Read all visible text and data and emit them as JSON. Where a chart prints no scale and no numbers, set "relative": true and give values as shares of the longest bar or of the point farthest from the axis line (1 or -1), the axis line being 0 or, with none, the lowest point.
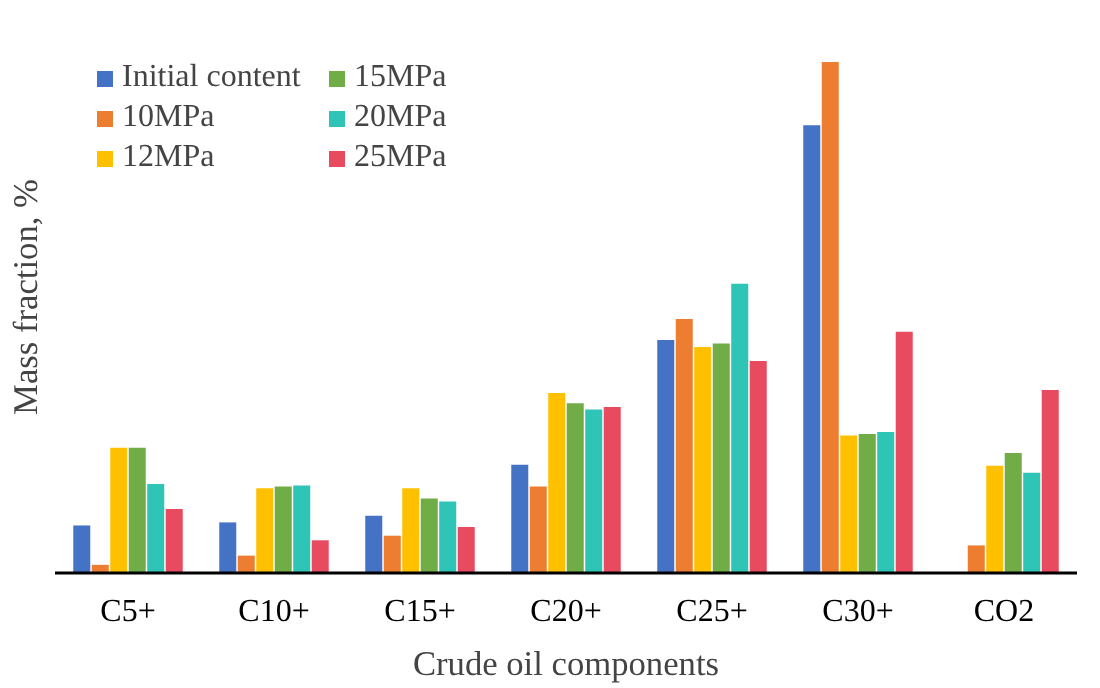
{
  "chart_data": {
    "type": "bar",
    "relative": true,
    "xlabel": "Crude oil components",
    "ylabel": "Mass fraction, %",
    "categories": [
      "C5+",
      "C10+",
      "C15+",
      "C20+",
      "C25+",
      "C30+",
      "CO2"
    ],
    "legend": "top left",
    "grid": false,
    "series": [
      {
        "name": "Initial content",
        "color": "#4472c4",
        "values": [
          0.093,
          0.099,
          0.112,
          0.212,
          0.456,
          0.876,
          null
        ]
      },
      {
        "name": "10MPa",
        "color": "#ed7d31",
        "values": [
          0.016,
          0.034,
          0.073,
          0.169,
          0.497,
          1,
          0.054
        ]
      },
      {
        "name": "12MPa",
        "color": "#ffc000",
        "values": [
          0.245,
          0.166,
          0.166,
          0.352,
          0.442,
          0.269,
          0.21
        ]
      },
      {
        "name": "15MPa",
        "color": "#70ad47",
        "values": [
          0.245,
          0.169,
          0.146,
          0.332,
          0.449,
          0.272,
          0.235
        ]
      },
      {
        "name": "20MPa",
        "color": "#2ec4b6",
        "values": [
          0.174,
          0.171,
          0.14,
          0.32,
          0.566,
          0.276,
          0.196
        ]
      },
      {
        "name": "25MPa",
        "color": "#e84a5f",
        "values": [
          0.125,
          0.064,
          0.09,
          0.325,
          0.415,
          0.472,
          0.358
        ]
      }
    ]
  }
}
